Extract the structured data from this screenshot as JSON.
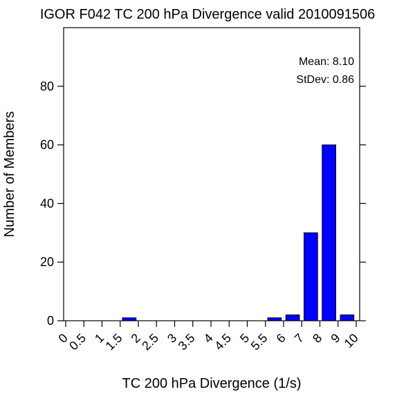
{
  "chart_data": {
    "type": "bar",
    "title": "IGOR F042 TC 200 hPa Divergence valid 2010091506",
    "xlabel": "TC 200 hPa Divergence (1/s)",
    "ylabel": "Number of Members",
    "x_tick_labels": [
      "0",
      "0.5",
      "1",
      "1.5",
      "2",
      "2.5",
      "3",
      "3.5",
      "4",
      "4.5",
      "5",
      "5.5",
      "6",
      "7",
      "8",
      "9",
      "10"
    ],
    "y_ticks": [
      0,
      20,
      40,
      60,
      80
    ],
    "y_tick_labels": [
      "0",
      "20",
      "40",
      "60",
      "80"
    ],
    "ylim": [
      0,
      100
    ],
    "bins": [
      "0–0.5",
      "0.5–1",
      "1–1.5",
      "1.5–2",
      "2–2.5",
      "2.5–3",
      "3–3.5",
      "3.5–4",
      "4–4.5",
      "4.5–5",
      "5–5.5",
      "5.5–6",
      "6–7",
      "7–8",
      "8–9",
      "9–10"
    ],
    "values": [
      0,
      0,
      0,
      1,
      0,
      0,
      0,
      0,
      0,
      0,
      0,
      1,
      2,
      30,
      60,
      2
    ],
    "bar_color": "#0000ff",
    "grid": false,
    "stats": {
      "mean": "Mean: 8.10",
      "stdev": "StDev: 0.86"
    }
  }
}
